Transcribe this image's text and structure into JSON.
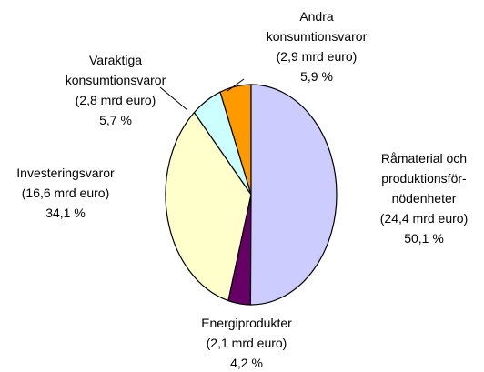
{
  "chart_data": {
    "type": "pie",
    "categories": [
      "Råmaterial och\nproduktionsför-\nnödenheter",
      "Energiprodukter",
      "Investeringsvaror",
      "Varaktiga\nkonsumtionsvaror",
      "Andra\nkonsumtionsvaror"
    ],
    "values": [
      50.1,
      4.2,
      34.1,
      5.7,
      5.9
    ],
    "value_labels": [
      "50,1 %",
      "4,2 %",
      "34,1 %",
      "5,7 %",
      "5,9 %"
    ],
    "amounts": [
      24.4,
      2.1,
      16.6,
      2.8,
      2.9
    ],
    "amount_labels": [
      "(24,4 mrd euro)",
      "(2,1 mrd euro)",
      "(16,6 mrd euro)",
      "(2,8 mrd euro)",
      "(2,9 mrd euro)"
    ],
    "colors": [
      "#ccccff",
      "#660066",
      "#ffffcc",
      "#ccffff",
      "#ff9900"
    ]
  }
}
